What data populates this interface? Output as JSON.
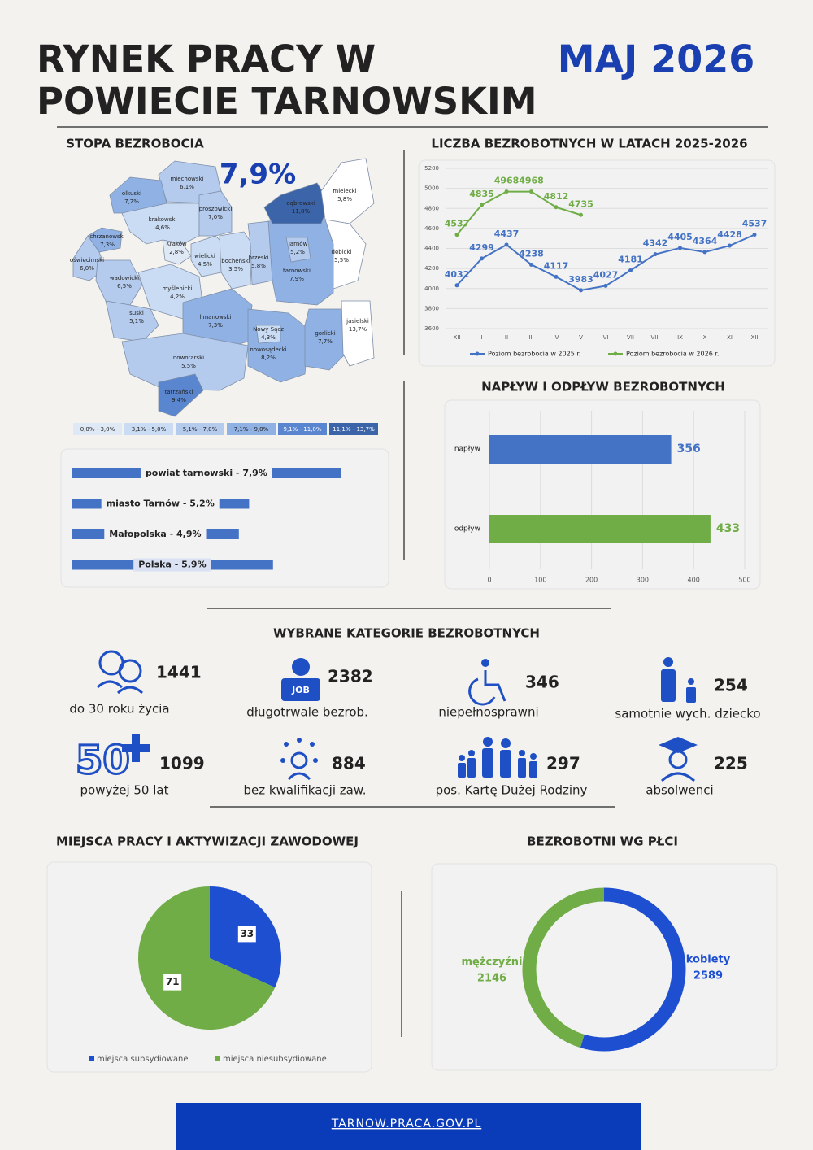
{
  "header": {
    "title_lines": [
      "RYNEK PRACY W",
      "POWIECIE TARNOWSKIM"
    ],
    "date": "MAJ 2026"
  },
  "map_section": {
    "title": "STOPA BEZROBOCIA",
    "headline": "7,9%",
    "regions": [
      {
        "name": "miechowski",
        "label": "6,1%",
        "color": "#b4cbee"
      },
      {
        "name": "olkuski",
        "label": "7,2%",
        "color": "#8fb1e4"
      },
      {
        "name": "krakowski",
        "label": "4,6%",
        "color": "#cadcf3"
      },
      {
        "name": "proszowicki",
        "label": "7,0%",
        "color": "#b4cbee"
      },
      {
        "name": "chrzanowski",
        "label": "7,3%",
        "color": "#8fb1e4"
      },
      {
        "name": "oświęcimski",
        "label": "6,0%",
        "color": "#b4cbee"
      },
      {
        "name": "Kraków",
        "label": "2,8%",
        "color": "#dfe9f6"
      },
      {
        "name": "wielicki",
        "label": "4,5%",
        "color": "#cadcf3"
      },
      {
        "name": "bocheński",
        "label": "3,5%",
        "color": "#cadcf3"
      },
      {
        "name": "brzeski",
        "label": "5,8%",
        "color": "#b4cbee"
      },
      {
        "name": "tarnowski",
        "label": "7,9%",
        "color": "#8fb1e4"
      },
      {
        "name": "Tarnów",
        "label": "5,2%",
        "color": "#b4cbee"
      },
      {
        "name": "dąbrowski",
        "label": "11,8%",
        "color": "#3c64a8"
      },
      {
        "name": "mielecki",
        "label": "5,8%",
        "color": "#ffffff"
      },
      {
        "name": "dębicki",
        "label": "5,5%",
        "color": "#ffffff"
      },
      {
        "name": "wadowicki",
        "label": "6,5%",
        "color": "#b4cbee"
      },
      {
        "name": "myślenicki",
        "label": "4,2%",
        "color": "#cadcf3"
      },
      {
        "name": "suski",
        "label": "5,1%",
        "color": "#b4cbee"
      },
      {
        "name": "limanowski",
        "label": "7,3%",
        "color": "#8fb1e4"
      },
      {
        "name": "nowosądecki",
        "label": "8,2%",
        "color": "#8fb1e4"
      },
      {
        "name": "Nowy Sącz",
        "label": "4,3%",
        "color": "#cadcf3"
      },
      {
        "name": "gorlicki",
        "label": "7,7%",
        "color": "#8fb1e4"
      },
      {
        "name": "jasielski",
        "label": "13,7%",
        "color": "#ffffff"
      },
      {
        "name": "nowotarski",
        "label": "5,5%",
        "color": "#b4cbee"
      },
      {
        "name": "tatrzański",
        "label": "9,4%",
        "color": "#5a86d0"
      }
    ],
    "legend": [
      {
        "label": "0,0% - 3,0%",
        "color": "#dfe9f6"
      },
      {
        "label": "3,1% - 5,0%",
        "color": "#cadcf3"
      },
      {
        "label": "5,1% - 7,0%",
        "color": "#b4cbee"
      },
      {
        "label": "7,1% - 9,0%",
        "color": "#8fb1e4"
      },
      {
        "label": "9,1% - 11,0%",
        "color": "#5a86d0"
      },
      {
        "label": "11,1% - 13,7%",
        "color": "#3c64a8"
      }
    ]
  },
  "chart_data": [
    {
      "type": "bar",
      "orientation": "horizontal",
      "categories": [
        "powiat tarnowski - 7,9%",
        "miasto Tarnów - 5,2%",
        "Małopolska - 4,9%",
        "Polska - 5,9%"
      ],
      "values": [
        7.9,
        5.2,
        4.9,
        5.9
      ],
      "color": "#4472c4"
    },
    {
      "type": "line",
      "title": "LICZBA BEZROBOTNYCH W LATACH 2025-2026",
      "categories": [
        "XII",
        "I",
        "II",
        "III",
        "IV",
        "V",
        "VI",
        "VII",
        "VIII",
        "IX",
        "X",
        "XI",
        "XII"
      ],
      "series": [
        {
          "name": "Poziom bezrobocia w 2025 r.",
          "color": "#4472c4",
          "values": [
            4032,
            4299,
            4437,
            4238,
            4117,
            3983,
            4027,
            4181,
            4342,
            4405,
            4364,
            4428,
            4537
          ]
        },
        {
          "name": "Poziom bezrobocia w 2026 r.",
          "color": "#70ad47",
          "values": [
            4537,
            4835,
            4968,
            4968,
            4812,
            4735,
            null,
            null,
            null,
            null,
            null,
            null,
            null
          ]
        }
      ],
      "ylim": [
        3600,
        5200
      ],
      "yticks": [
        3600,
        3800,
        4000,
        4200,
        4400,
        4600,
        4800,
        5000,
        5200
      ],
      "grid": true,
      "legend": "bottom"
    },
    {
      "type": "bar",
      "orientation": "horizontal",
      "title": "NAPŁYW I ODPŁYW BEZROBOTNYCH",
      "categories": [
        "napływ",
        "odpływ"
      ],
      "values": [
        356,
        433
      ],
      "colors": [
        "#4472c4",
        "#70ad47"
      ],
      "xlim": [
        0,
        500
      ],
      "xticks": [
        0,
        100,
        200,
        300,
        400,
        500
      ],
      "grid": true
    },
    {
      "type": "pie",
      "title": "MIEJSCA PRACY I AKTYWIZACJI ZAWODOWEJ",
      "categories": [
        "miejsca subsydiowane",
        "miejsca niesubsydiowane"
      ],
      "values": [
        33,
        71
      ],
      "colors": [
        "#1f4fd1",
        "#70ad47"
      ],
      "legend": "bottom"
    },
    {
      "type": "donut",
      "title": "BEZROBOTNI WG PŁCI",
      "categories": [
        "kobiety",
        "mężczyźni"
      ],
      "values": [
        2589,
        2146
      ],
      "colors": [
        "#1f4fd1",
        "#70ad47"
      ]
    }
  ],
  "categories_section": {
    "title": "WYBRANE KATEGORIE BEZROBOTNYCH",
    "items": [
      {
        "value": "1441",
        "label": "do 30 roku życia"
      },
      {
        "value": "2382",
        "label": "długotrwale bezrob."
      },
      {
        "value": "346",
        "label": "niepełnosprawni"
      },
      {
        "value": "254",
        "label": "samotnie wych. dziecko"
      },
      {
        "value": "1099",
        "label": "powyżej 50 lat"
      },
      {
        "value": "884",
        "label": "bez kwalifikacji zaw."
      },
      {
        "value": "297",
        "label": "pos. Kartę Dużej Rodziny"
      },
      {
        "value": "225",
        "label": "absolwenci"
      }
    ]
  },
  "footer": {
    "url": "TARNOW.PRACA.GOV.PL"
  }
}
